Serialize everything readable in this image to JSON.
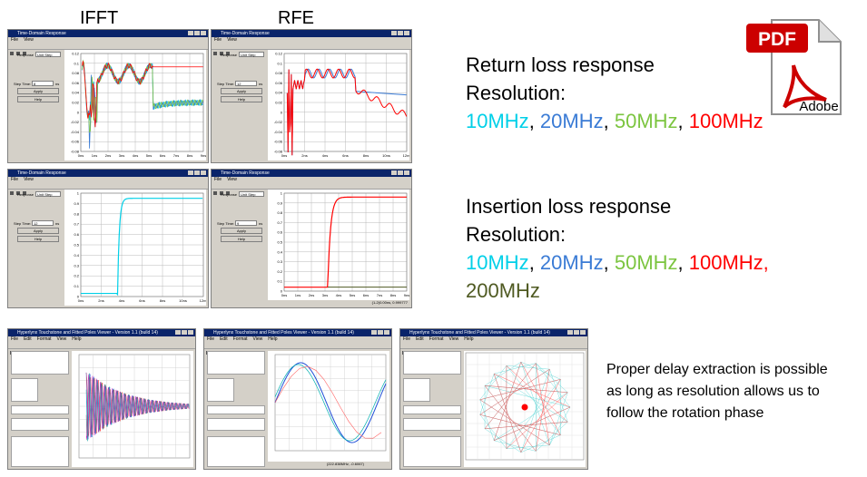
{
  "headers": {
    "ifft": "IFFT",
    "rfe": "RFE"
  },
  "return_loss": {
    "title": "Return loss response",
    "resolution_label": "Resolution:",
    "items": [
      {
        "text": "10MHz",
        "color": "#00d0e8",
        "sep": ", "
      },
      {
        "text": "20MHz",
        "color": "#3a7bd5",
        "sep": ", "
      },
      {
        "text": "50MHz",
        "color": "#7cc540",
        "sep": ", "
      },
      {
        "text": "100MHz",
        "color": "#ff0000",
        "sep": ""
      }
    ]
  },
  "insertion_loss": {
    "title": "Insertion loss response",
    "resolution_label": "Resolution:",
    "items": [
      {
        "text": "10MHz",
        "color": "#00d0e8",
        "sep": ", "
      },
      {
        "text": "20MHz",
        "color": "#3a7bd5",
        "sep": ", "
      },
      {
        "text": "50MHz",
        "color": "#7cc540",
        "sep": ", "
      },
      {
        "text": "100MHz,",
        "color": "#ff0000",
        "sep": ""
      }
    ],
    "line2": {
      "text": "200MHz",
      "color": "#4f5a22"
    }
  },
  "note": {
    "lines": [
      "Proper delay extraction is possible",
      "as long as resolution allows us to",
      "follow the rotation phase"
    ]
  },
  "pdf_badge": {
    "label": "PDF",
    "brand": "Adobe",
    "red": "#cc0000"
  },
  "windows": [
    {
      "id": "w1",
      "title": "Time-Domain Response",
      "menu": [
        "File",
        "View"
      ],
      "response_label": "Response",
      "response_value": "Unit Step",
      "step_label": "Step Time:",
      "step_value": "8",
      "unit": "ns",
      "apply": "Apply",
      "help": "Help",
      "yticks": [
        "0.12",
        "0.1",
        "0.08",
        "0.06",
        "0.04",
        "0.02",
        "0",
        "-0.02",
        "-0.04",
        "-0.06",
        "-0.08"
      ],
      "xticks": [
        "0ns",
        "1ns",
        "2ns",
        "3ns",
        "4ns",
        "5ns",
        "6ns",
        "7ns",
        "8ns",
        "9ns"
      ]
    },
    {
      "id": "w2",
      "title": "Time-Domain Response",
      "menu": [
        "File",
        "View"
      ],
      "response_label": "Response",
      "response_value": "Unit Step",
      "step_label": "Step Time:",
      "step_value": "12",
      "unit": "ns",
      "apply": "Apply",
      "help": "Help",
      "yticks": [
        "0.12",
        "0.1",
        "0.08",
        "0.06",
        "0.04",
        "0.02",
        "0",
        "-0.02",
        "-0.04",
        "-0.06",
        "-0.08"
      ],
      "xticks": [
        "0ns",
        "2ns",
        "4ns",
        "6ns",
        "8ns",
        "10ns",
        "12ns"
      ]
    },
    {
      "id": "w3",
      "title": "Time-Domain Response",
      "menu": [
        "File",
        "View"
      ],
      "response_label": "Response",
      "response_value": "Unit Step",
      "step_label": "Step Time:",
      "step_value": "12",
      "unit": "ns",
      "apply": "Apply",
      "help": "Help",
      "yticks": [
        "1",
        "0.9",
        "0.8",
        "0.7",
        "0.6",
        "0.5",
        "0.4",
        "0.3",
        "0.2",
        "0.1",
        "0"
      ],
      "xticks": [
        "0ns",
        "2ns",
        "4ns",
        "6ns",
        "8ns",
        "10ns",
        "12ns"
      ]
    },
    {
      "id": "w4",
      "title": "Time-Domain Response",
      "menu": [
        "File",
        "View"
      ],
      "response_label": "Response",
      "response_value": "Unit Step",
      "step_label": "Step Time:",
      "step_value": "9",
      "unit": "ns",
      "apply": "Apply",
      "help": "Help",
      "yticks": [
        "1",
        "0.9",
        "0.8",
        "0.7",
        "0.6",
        "0.5",
        "0.4",
        "0.3",
        "0.2",
        "0.1",
        "0"
      ],
      "xticks": [
        "0ns",
        "1ns",
        "2ns",
        "3ns",
        "4ns",
        "5ns",
        "6ns",
        "7ns",
        "8ns",
        "9ns"
      ],
      "footer": "(1-2)0.00ns, 0.999777"
    },
    {
      "id": "w5",
      "title": "Hyperlynx Touchstone and Fitted Poles Viewer - Version 1.1 (build 14)",
      "menu": [
        "File",
        "Edit",
        "Format",
        "View",
        "Help"
      ]
    },
    {
      "id": "w6",
      "title": "Hyperlynx Touchstone and Fitted Poles Viewer - Version 1.1 (build 14)",
      "menu": [
        "File",
        "Edit",
        "Format",
        "View",
        "Help"
      ],
      "footer": "(222.838MHz, -0.6067)"
    },
    {
      "id": "w7",
      "title": "Hyperlynx Touchstone and Fitted Poles Viewer - Version 1.1 (build 14)",
      "menu": [
        "File",
        "Edit",
        "Format",
        "View",
        "Help"
      ]
    }
  ],
  "chart_data": [
    {
      "type": "line",
      "title": "",
      "series": [
        {
          "name": "10MHz",
          "color": "#00d0e8"
        },
        {
          "name": "20MHz",
          "color": "#3a7bd5"
        },
        {
          "name": "50MHz",
          "color": "#7cc540"
        },
        {
          "name": "100MHz",
          "color": "#ff0000"
        }
      ],
      "ylim": [
        -0.09,
        0.13
      ],
      "xlim": [
        0,
        9
      ]
    },
    {
      "type": "line",
      "title": "",
      "series": [
        {
          "name": "20MHz",
          "color": "#3a7bd5"
        },
        {
          "name": "100MHz",
          "color": "#ff0000"
        }
      ],
      "ylim": [
        -0.09,
        0.13
      ],
      "xlim": [
        0,
        12
      ]
    },
    {
      "type": "line",
      "title": "",
      "series": [
        {
          "name": "10MHz",
          "color": "#00d0e8"
        }
      ],
      "ylim": [
        0,
        1
      ],
      "xlim": [
        0,
        12
      ]
    },
    {
      "type": "line",
      "title": "",
      "series": [
        {
          "name": "100MHz",
          "color": "#ff0000"
        },
        {
          "name": "200MHz",
          "color": "#4f5a22"
        }
      ],
      "ylim": [
        0,
        1
      ],
      "xlim": [
        0,
        9
      ]
    }
  ]
}
